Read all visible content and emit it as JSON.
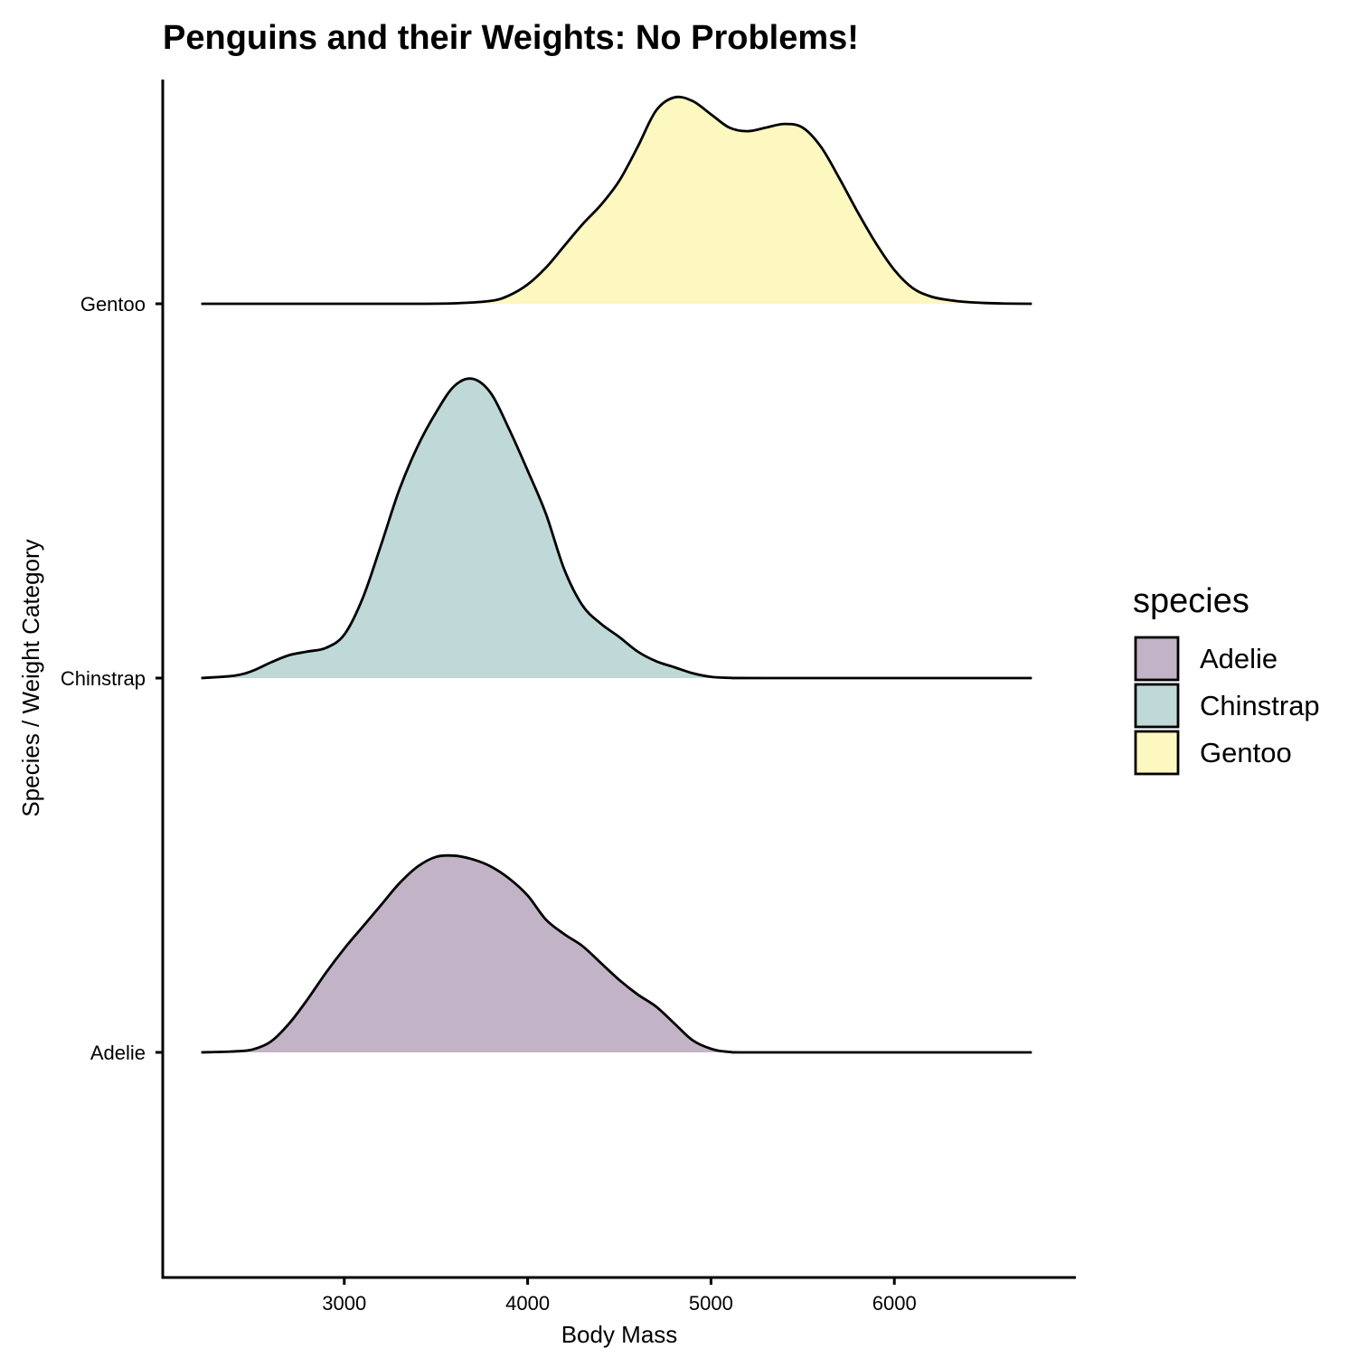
{
  "chart_data": {
    "type": "ridgeline",
    "title": "Penguins and their Weights: No Problems!",
    "xlabel": "Body Mass",
    "ylabel": "Species / Weight Category",
    "xlim": [
      2010,
      6990
    ],
    "x_ticks": [
      3000,
      4000,
      5000,
      6000
    ],
    "x_tick_labels": [
      "3000",
      "4000",
      "5000",
      "6000"
    ],
    "categories": [
      "Adelie",
      "Chinstrap",
      "Gentoo"
    ],
    "grid": false,
    "legend": {
      "title": "species",
      "position": "right",
      "entries": [
        "Adelie",
        "Chinstrap",
        "Gentoo"
      ]
    },
    "series": [
      {
        "name": "Adelie",
        "color": "#c2b3c7",
        "points": [
          [
            2220,
            0
          ],
          [
            2400,
            0.004
          ],
          [
            2500,
            0.012
          ],
          [
            2600,
            0.045
          ],
          [
            2700,
            0.12
          ],
          [
            2800,
            0.22
          ],
          [
            2900,
            0.33
          ],
          [
            3000,
            0.43
          ],
          [
            3100,
            0.52
          ],
          [
            3200,
            0.61
          ],
          [
            3300,
            0.7
          ],
          [
            3400,
            0.77
          ],
          [
            3500,
            0.81
          ],
          [
            3600,
            0.815
          ],
          [
            3700,
            0.8
          ],
          [
            3800,
            0.77
          ],
          [
            3900,
            0.72
          ],
          [
            4000,
            0.65
          ],
          [
            4100,
            0.55
          ],
          [
            4200,
            0.49
          ],
          [
            4300,
            0.44
          ],
          [
            4400,
            0.37
          ],
          [
            4500,
            0.3
          ],
          [
            4600,
            0.24
          ],
          [
            4700,
            0.19
          ],
          [
            4800,
            0.12
          ],
          [
            4900,
            0.05
          ],
          [
            5000,
            0.015
          ],
          [
            5100,
            0.002
          ],
          [
            5300,
            0
          ],
          [
            6750,
            0
          ]
        ]
      },
      {
        "name": "Chinstrap",
        "color": "#bed9d8",
        "points": [
          [
            2220,
            0
          ],
          [
            2400,
            0.01
          ],
          [
            2500,
            0.03
          ],
          [
            2600,
            0.065
          ],
          [
            2700,
            0.095
          ],
          [
            2800,
            0.11
          ],
          [
            2900,
            0.125
          ],
          [
            3000,
            0.18
          ],
          [
            3100,
            0.33
          ],
          [
            3200,
            0.55
          ],
          [
            3300,
            0.78
          ],
          [
            3400,
            0.96
          ],
          [
            3500,
            1.1
          ],
          [
            3600,
            1.21
          ],
          [
            3700,
            1.24
          ],
          [
            3800,
            1.18
          ],
          [
            3900,
            1.03
          ],
          [
            4000,
            0.86
          ],
          [
            4100,
            0.68
          ],
          [
            4200,
            0.45
          ],
          [
            4300,
            0.3
          ],
          [
            4400,
            0.225
          ],
          [
            4500,
            0.17
          ],
          [
            4600,
            0.11
          ],
          [
            4700,
            0.07
          ],
          [
            4800,
            0.045
          ],
          [
            4900,
            0.02
          ],
          [
            5000,
            0.005
          ],
          [
            5100,
            0.001
          ],
          [
            5300,
            0
          ],
          [
            6750,
            0
          ]
        ]
      },
      {
        "name": "Gentoo",
        "color": "#fdf7c0",
        "points": [
          [
            2220,
            0
          ],
          [
            3300,
            0
          ],
          [
            3600,
            0.002
          ],
          [
            3800,
            0.012
          ],
          [
            3900,
            0.035
          ],
          [
            4000,
            0.08
          ],
          [
            4100,
            0.15
          ],
          [
            4200,
            0.24
          ],
          [
            4300,
            0.33
          ],
          [
            4400,
            0.41
          ],
          [
            4500,
            0.51
          ],
          [
            4600,
            0.65
          ],
          [
            4700,
            0.8
          ],
          [
            4800,
            0.855
          ],
          [
            4900,
            0.84
          ],
          [
            5000,
            0.785
          ],
          [
            5100,
            0.73
          ],
          [
            5200,
            0.715
          ],
          [
            5300,
            0.73
          ],
          [
            5400,
            0.745
          ],
          [
            5500,
            0.73
          ],
          [
            5600,
            0.65
          ],
          [
            5700,
            0.52
          ],
          [
            5800,
            0.38
          ],
          [
            5900,
            0.25
          ],
          [
            6000,
            0.14
          ],
          [
            6100,
            0.065
          ],
          [
            6200,
            0.03
          ],
          [
            6300,
            0.015
          ],
          [
            6400,
            0.007
          ],
          [
            6500,
            0.003
          ],
          [
            6600,
            0.001
          ],
          [
            6750,
            0
          ]
        ]
      }
    ]
  }
}
